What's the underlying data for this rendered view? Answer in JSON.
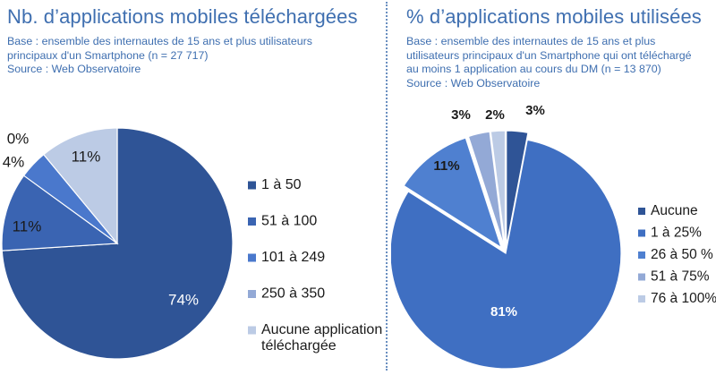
{
  "colors": {
    "title": "#3f6fb0",
    "divider": "#6a8fc0"
  },
  "left": {
    "title": "Nb. d’applications mobiles téléchargées",
    "subtitle": "Base : ensemble des internautes de 15 ans et plus utilisateurs\nprincipaux d'un Smartphone  (n = 27 717)\nSource : Web Observatoire"
  },
  "right": {
    "title": "%  d’applications mobiles utilisées",
    "subtitle": "Base : ensemble des internautes de 15 ans et plus\nutilisateurs principaux d'un Smartphone qui ont téléchargé\nau moins 1 application au cours du DM (n = 13 870)\nSource : Web Observatoire"
  },
  "chart_data": [
    {
      "type": "pie",
      "title": "Nb. d’applications mobiles téléchargées",
      "categories": [
        "1 à 50",
        "51 à 100",
        "101 à 249",
        "250 à 350",
        "Aucune application téléchargée"
      ],
      "legend_lines": [
        [
          "1 à 50"
        ],
        [
          "51 à 100"
        ],
        [
          "101 à 249"
        ],
        [
          "250 à 350"
        ],
        [
          "Aucune application",
          "téléchargée"
        ]
      ],
      "values": [
        74,
        11,
        4,
        0,
        11
      ],
      "value_labels": [
        "74%",
        "11%",
        "4%",
        "0%",
        "11%"
      ],
      "colors": [
        "#2f5496",
        "#3a64b2",
        "#4a78cc",
        "#93a9d6",
        "#bccbe5"
      ],
      "start": "12 o'clock, clockwise",
      "legend_position": "right"
    },
    {
      "type": "pie",
      "title": "%  d’applications mobiles utilisées",
      "categories": [
        "Aucune",
        "1 à 25%",
        "26 à 50 %",
        "51 à 75%",
        "76 à 100%"
      ],
      "legend_lines": [
        [
          "Aucune"
        ],
        [
          "1 à 25%"
        ],
        [
          "26 à 50 %"
        ],
        [
          "51 à 75%"
        ],
        [
          "76 à 100%"
        ]
      ],
      "values": [
        3,
        81,
        11,
        3,
        2
      ],
      "value_labels": [
        "3%",
        "81%",
        "11%",
        "3%",
        "2%"
      ],
      "colors": [
        "#2f5496",
        "#3f6fc2",
        "#4f80d0",
        "#93a9d6",
        "#bccbe5"
      ],
      "start": "12 o'clock, clockwise",
      "legend_position": "right"
    }
  ]
}
